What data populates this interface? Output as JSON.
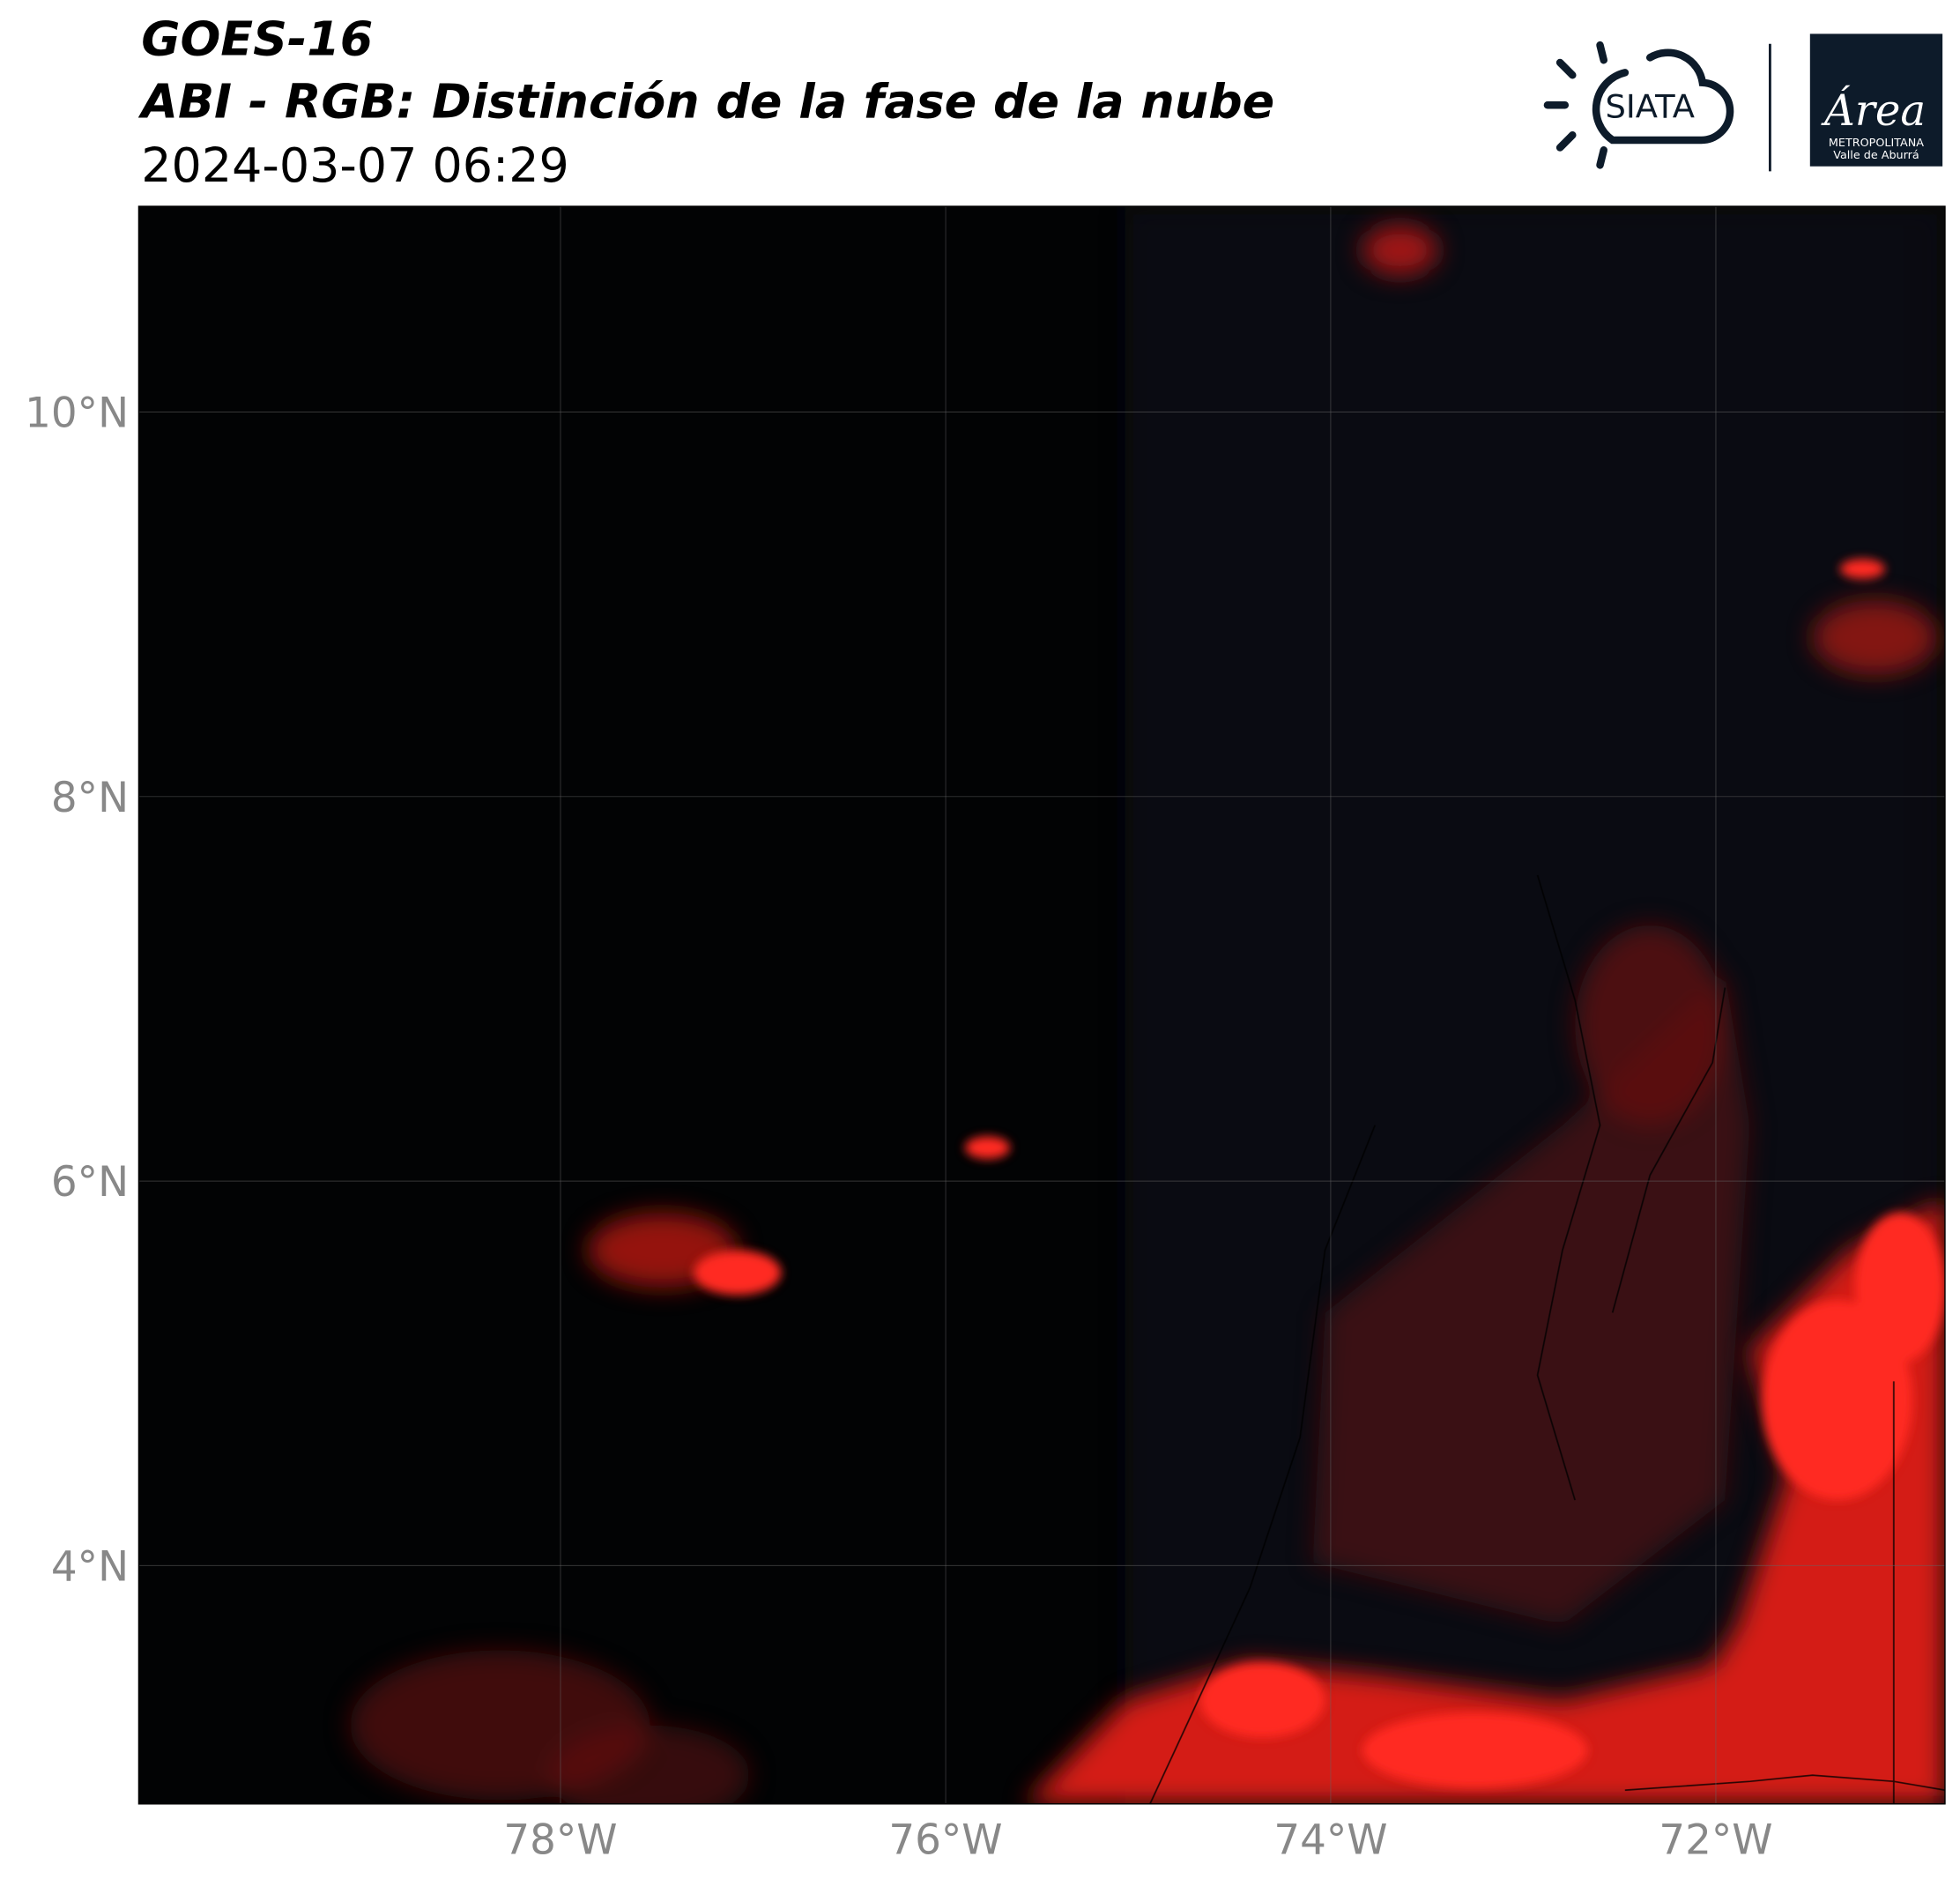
{
  "header": {
    "title": "GOES-16",
    "subtitle": "ABI - RGB: Distinción de la fase de la nube",
    "datetime": "2024-03-07 06:29"
  },
  "logos": {
    "siata": "SIATA",
    "area": "Área",
    "area_line1": "METROPOLITANA",
    "area_line2": "Valle de Aburrá"
  },
  "map": {
    "xlim": [
      -80.19,
      -70.81
    ],
    "ylim": [
      2.76,
      11.07
    ],
    "xticks": [
      {
        "value": -78,
        "label": "78°W"
      },
      {
        "value": -76,
        "label": "76°W"
      },
      {
        "value": -74,
        "label": "74°W"
      },
      {
        "value": -72,
        "label": "72°W"
      }
    ],
    "yticks": [
      {
        "value": 4,
        "label": "4°N"
      },
      {
        "value": 6,
        "label": "6°N"
      },
      {
        "value": 8,
        "label": "8°N"
      },
      {
        "value": 10,
        "label": "10°N"
      }
    ]
  }
}
